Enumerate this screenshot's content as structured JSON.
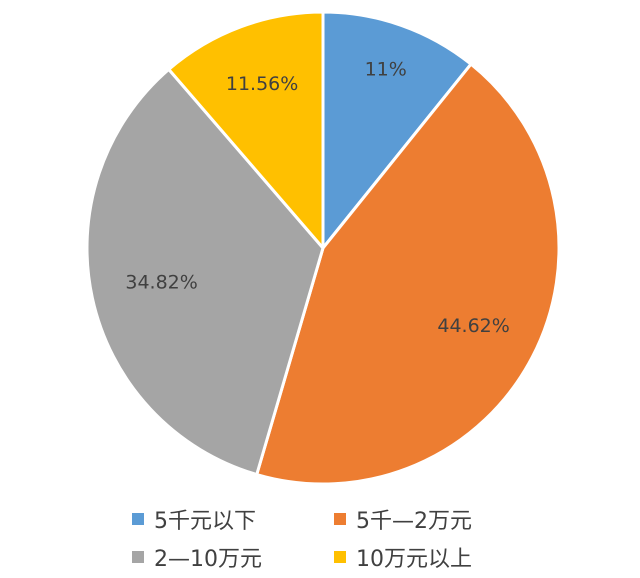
{
  "chart_data": {
    "type": "pie",
    "title": "",
    "legend_placement": "bottom",
    "categories": [
      "5千元以下",
      "5千—2万元",
      "2—10万元",
      "10万元以上"
    ],
    "values": [
      11,
      44.62,
      34.82,
      11.56
    ],
    "labels": [
      "11%",
      "44.62%",
      "34.82%",
      "11.56%"
    ],
    "colors": [
      "#5B9BD5",
      "#ED7D31",
      "#A5A5A5",
      "#FFC000"
    ]
  }
}
